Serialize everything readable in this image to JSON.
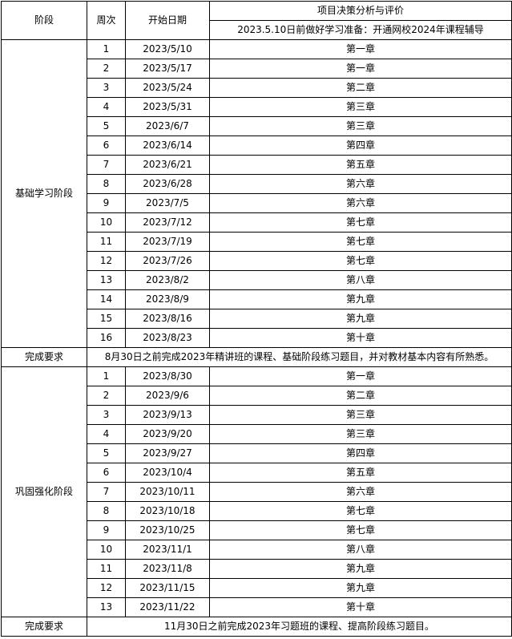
{
  "header": {
    "stage": "阶段",
    "week": "周次",
    "start_date": "开始日期",
    "subject": "项目决策分析与评价",
    "prep_note": "2023.5.10日前做好学习准备：开通网校2024年课程辅导"
  },
  "sections": [
    {
      "stage": "基础学习阶段",
      "rows": [
        [
          "1",
          "2023/5/10",
          "第一章"
        ],
        [
          "2",
          "2023/5/17",
          "第一章"
        ],
        [
          "3",
          "2023/5/24",
          "第二章"
        ],
        [
          "4",
          "2023/5/31",
          "第三章"
        ],
        [
          "5",
          "2023/6/7",
          "第三章"
        ],
        [
          "6",
          "2023/6/14",
          "第四章"
        ],
        [
          "7",
          "2023/6/21",
          "第五章"
        ],
        [
          "8",
          "2023/6/28",
          "第六章"
        ],
        [
          "9",
          "2023/7/5",
          "第六章"
        ],
        [
          "10",
          "2023/7/12",
          "第七章"
        ],
        [
          "11",
          "2023/7/19",
          "第七章"
        ],
        [
          "12",
          "2023/7/26",
          "第七章"
        ],
        [
          "13",
          "2023/8/2",
          "第八章"
        ],
        [
          "14",
          "2023/8/9",
          "第九章"
        ],
        [
          "15",
          "2023/8/16",
          "第九章"
        ],
        [
          "16",
          "2023/8/23",
          "第十章"
        ]
      ],
      "req_label": "完成要求",
      "req_text": "8月30日之前完成2023年精讲班的课程、基础阶段练习题目，并对教材基本内容有所熟悉。"
    },
    {
      "stage": "巩固强化阶段",
      "rows": [
        [
          "1",
          "2023/8/30",
          "第一章"
        ],
        [
          "2",
          "2023/9/6",
          "第二章"
        ],
        [
          "3",
          "2023/9/13",
          "第三章"
        ],
        [
          "4",
          "2023/9/20",
          "第三章"
        ],
        [
          "5",
          "2023/9/27",
          "第四章"
        ],
        [
          "6",
          "2023/10/4",
          "第五章"
        ],
        [
          "7",
          "2023/10/11",
          "第六章"
        ],
        [
          "8",
          "2023/10/18",
          "第七章"
        ],
        [
          "9",
          "2023/10/25",
          "第七章"
        ],
        [
          "10",
          "2023/11/1",
          "第八章"
        ],
        [
          "11",
          "2023/11/8",
          "第九章"
        ],
        [
          "12",
          "2023/11/15",
          "第九章"
        ],
        [
          "13",
          "2023/11/22",
          "第十章"
        ]
      ],
      "req_label": "完成要求",
      "req_text": "11月30日之前完成2023年习题班的课程、提高阶段练习题目。"
    }
  ]
}
